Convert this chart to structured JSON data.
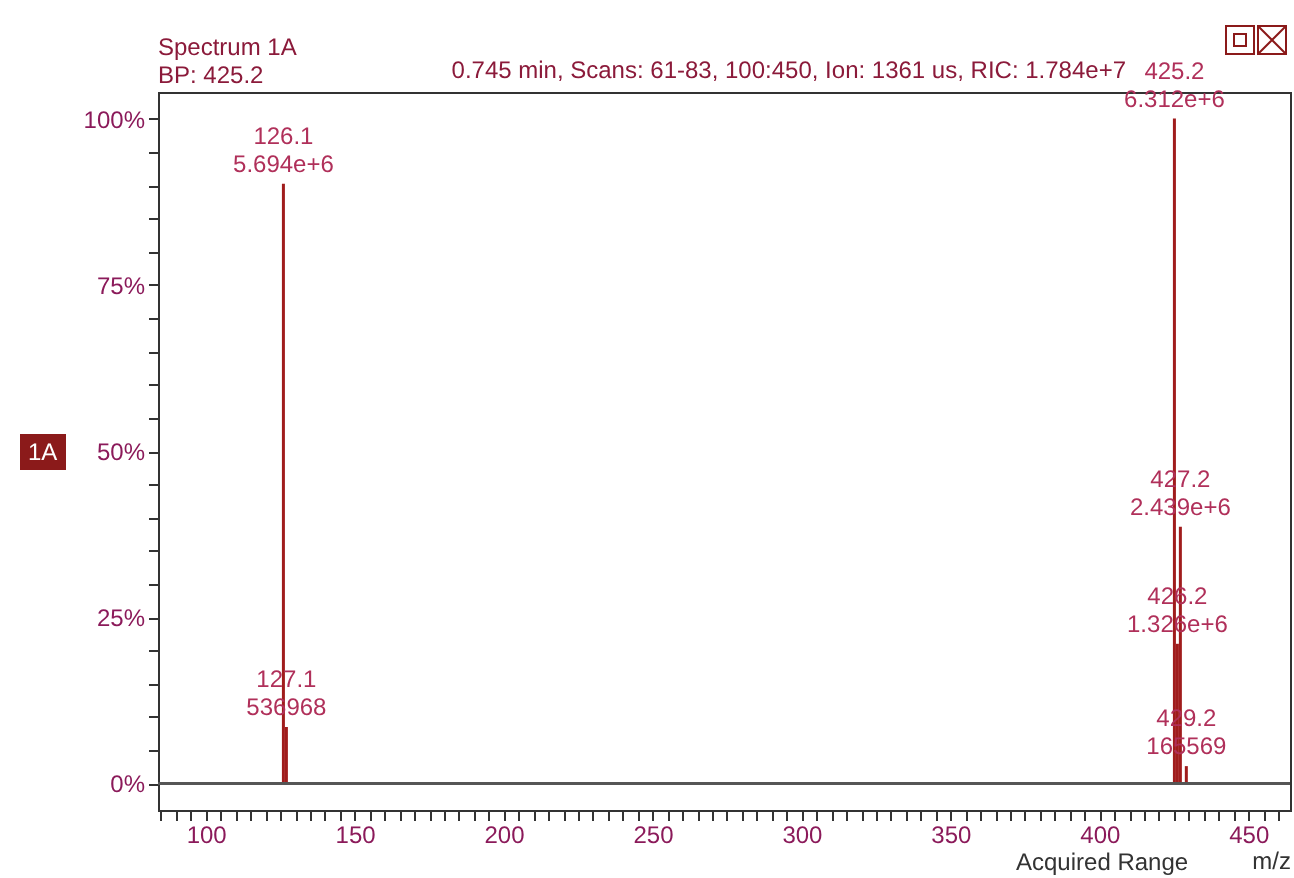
{
  "chart_data": {
    "type": "bar",
    "title": "Spectrum 1A",
    "subtitle": "BP: 425.2",
    "xlabel": "m/z",
    "annotations": [
      "0.745 min, Scans: 61-83, 100:450, Ion: 1361 us, RIC: 1.784e+7",
      "1A",
      "Acquired Range",
      {
        "text": "126.1\n5.694e+6",
        "x": 126.1,
        "y": 90.2
      },
      {
        "text": "127.1\n536968",
        "x": 127.1,
        "y": 8.5
      },
      {
        "text": "425.2\n6.312e+6",
        "x": 425.2,
        "y": 100
      },
      {
        "text": "426.2\n1.326e+6",
        "x": 426.2,
        "y": 21.0
      },
      {
        "text": "427.2\n2.439e+6",
        "x": 427.2,
        "y": 38.6
      },
      {
        "text": "429.2\n165569",
        "x": 429.2,
        "y": 2.6
      }
    ],
    "x": [
      126.1,
      127.1,
      425.2,
      426.2,
      427.2,
      429.2
    ],
    "values": [
      90.2,
      8.5,
      100,
      21.0,
      38.6,
      2.6
    ],
    "color": "#a01c1c",
    "xlim": [
      84,
      464
    ],
    "xticks": [
      {
        "value": 85,
        "label": null
      },
      {
        "value": 90,
        "label": null
      },
      {
        "value": 95,
        "label": null
      },
      100,
      {
        "value": 105,
        "label": null
      },
      {
        "value": 110,
        "label": null
      },
      {
        "value": 115,
        "label": null
      },
      {
        "value": 120,
        "label": null
      },
      {
        "value": 125,
        "label": null
      },
      {
        "value": 130,
        "label": null
      },
      {
        "value": 135,
        "label": null
      },
      {
        "value": 140,
        "label": null
      },
      {
        "value": 145,
        "label": null
      },
      150,
      {
        "value": 155,
        "label": null
      },
      {
        "value": 160,
        "label": null
      },
      {
        "value": 165,
        "label": null
      },
      {
        "value": 170,
        "label": null
      },
      {
        "value": 175,
        "label": null
      },
      {
        "value": 180,
        "label": null
      },
      {
        "value": 185,
        "label": null
      },
      {
        "value": 190,
        "label": null
      },
      {
        "value": 195,
        "label": null
      },
      200,
      {
        "value": 205,
        "label": null
      },
      {
        "value": 210,
        "label": null
      },
      {
        "value": 215,
        "label": null
      },
      {
        "value": 220,
        "label": null
      },
      {
        "value": 225,
        "label": null
      },
      {
        "value": 230,
        "label": null
      },
      {
        "value": 235,
        "label": null
      },
      {
        "value": 240,
        "label": null
      },
      {
        "value": 245,
        "label": null
      },
      250,
      {
        "value": 255,
        "label": null
      },
      {
        "value": 260,
        "label": null
      },
      {
        "value": 265,
        "label": null
      },
      {
        "value": 270,
        "label": null
      },
      {
        "value": 275,
        "label": null
      },
      {
        "value": 280,
        "label": null
      },
      {
        "value": 285,
        "label": null
      },
      {
        "value": 290,
        "label": null
      },
      {
        "value": 295,
        "label": null
      },
      300,
      {
        "value": 305,
        "label": null
      },
      {
        "value": 310,
        "label": null
      },
      {
        "value": 315,
        "label": null
      },
      {
        "value": 320,
        "label": null
      },
      {
        "value": 325,
        "label": null
      },
      {
        "value": 330,
        "label": null
      },
      {
        "value": 335,
        "label": null
      },
      {
        "value": 340,
        "label": null
      },
      {
        "value": 345,
        "label": null
      },
      350,
      {
        "value": 355,
        "label": null
      },
      {
        "value": 360,
        "label": null
      },
      {
        "value": 365,
        "label": null
      },
      {
        "value": 370,
        "label": null
      },
      {
        "value": 375,
        "label": null
      },
      {
        "value": 380,
        "label": null
      },
      {
        "value": 385,
        "label": null
      },
      {
        "value": 390,
        "label": null
      },
      {
        "value": 395,
        "label": null
      },
      400,
      {
        "value": 405,
        "label": null
      },
      {
        "value": 410,
        "label": null
      },
      {
        "value": 415,
        "label": null
      },
      {
        "value": 420,
        "label": null
      },
      {
        "value": 425,
        "label": null
      },
      {
        "value": 430,
        "label": null
      },
      {
        "value": 435,
        "label": null
      },
      {
        "value": 440,
        "label": null
      },
      {
        "value": 445,
        "label": null
      },
      450,
      {
        "value": 455,
        "label": null
      },
      {
        "value": 460,
        "label": null
      }
    ],
    "ylim": [
      -4,
      104
    ],
    "yticks": [
      {
        "value": 0,
        "label": "0%"
      },
      {
        "value": 5,
        "label": null
      },
      {
        "value": 10,
        "label": null
      },
      {
        "value": 15,
        "label": null
      },
      {
        "value": 20,
        "label": null
      },
      {
        "value": 25,
        "label": "25%"
      },
      {
        "value": 30,
        "label": null
      },
      {
        "value": 35,
        "label": null
      },
      {
        "value": 40,
        "label": null
      },
      {
        "value": 45,
        "label": null
      },
      {
        "value": 50,
        "label": "50%"
      },
      {
        "value": 55,
        "label": null
      },
      {
        "value": 60,
        "label": null
      },
      {
        "value": 65,
        "label": null
      },
      {
        "value": 70,
        "label": null
      },
      {
        "value": 75,
        "label": "75%"
      },
      {
        "value": 80,
        "label": null
      },
      {
        "value": 85,
        "label": null
      },
      {
        "value": 90,
        "label": null
      },
      {
        "value": 95,
        "label": null
      },
      {
        "value": 100,
        "label": "100%"
      }
    ],
    "ref_lines": [
      {
        "axis": "y",
        "value": 0,
        "color": "#555555"
      }
    ],
    "grid": false
  }
}
